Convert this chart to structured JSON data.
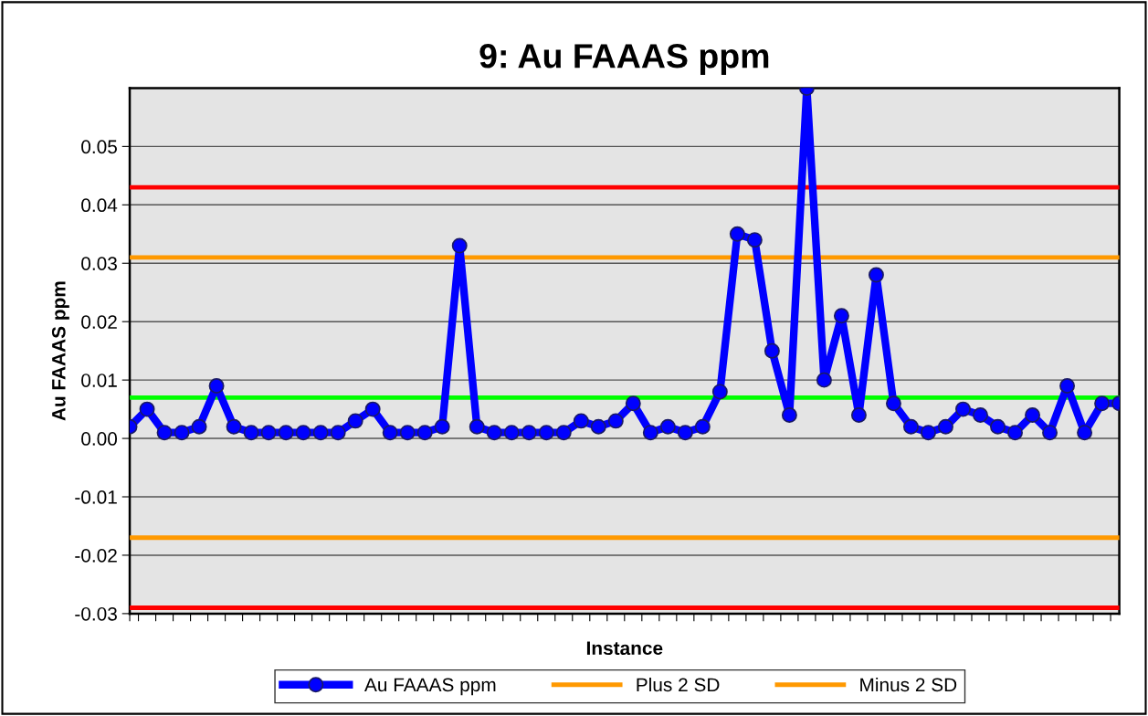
{
  "chart_data": {
    "type": "line",
    "title": "9: Au FAAAS ppm",
    "xlabel": "Instance",
    "ylabel": "Au FAAAS ppm",
    "categories": [
      null,
      null,
      null,
      null,
      null,
      null,
      null,
      null,
      null,
      null,
      null,
      null,
      null,
      null,
      null,
      null,
      null,
      null,
      null,
      null,
      null,
      null,
      null,
      null,
      null,
      null,
      null,
      null,
      null,
      null,
      null,
      null,
      null,
      null,
      null,
      null,
      null,
      null,
      null,
      null,
      null,
      null,
      null,
      null,
      null,
      null,
      null,
      null,
      null,
      null,
      null,
      null,
      null,
      null,
      null,
      null,
      null,
      null
    ],
    "series": [
      {
        "name": "Au FAAAS ppm",
        "color": "#0000ff",
        "values": [
          0.002,
          0.005,
          0.001,
          0.001,
          0.002,
          0.009,
          0.002,
          0.001,
          0.001,
          0.001,
          0.001,
          0.001,
          0.001,
          0.003,
          0.005,
          0.001,
          0.001,
          0.001,
          0.002,
          0.033,
          0.002,
          0.001,
          0.001,
          0.001,
          0.001,
          0.001,
          0.003,
          0.002,
          0.003,
          0.006,
          0.001,
          0.002,
          0.001,
          0.002,
          0.008,
          0.035,
          0.034,
          0.015,
          0.004,
          0.06,
          0.01,
          0.021,
          0.004,
          0.028,
          0.006,
          0.002,
          0.001,
          0.002,
          0.005,
          0.004,
          0.002,
          0.001,
          0.004,
          0.001,
          0.009,
          0.001,
          0.006,
          0.006
        ]
      }
    ],
    "marker": "circle",
    "line_style": "solid",
    "ylim": [
      -0.03,
      0.06
    ],
    "yticks": [
      -0.03,
      -0.02,
      -0.01,
      {
        "value": 0,
        "label": "0.00"
      },
      0.01,
      0.02,
      0.03,
      0.04,
      0.05
    ],
    "grid": "y",
    "legend": "bottom",
    "ref_lines": [
      {
        "axis": "y",
        "value": 0.043,
        "color": "#ff0000"
      },
      {
        "axis": "y",
        "value": 0.031,
        "color": "#ff9900",
        "label": "Plus 2 SD"
      },
      {
        "axis": "y",
        "value": 0.007,
        "color": "#00ff00"
      },
      {
        "axis": "y",
        "value": -0.017,
        "color": "#ff9900",
        "label": "Minus 2 SD"
      },
      {
        "axis": "y",
        "value": -0.029,
        "color": "#ff0000"
      }
    ]
  }
}
